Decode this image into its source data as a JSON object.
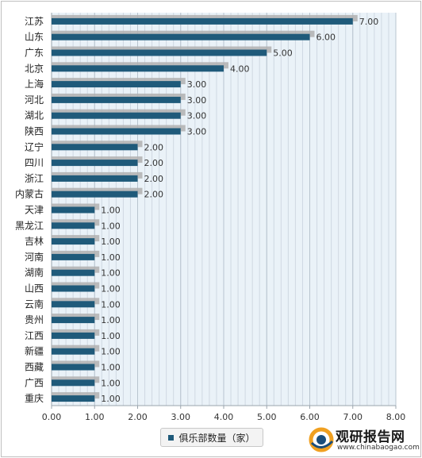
{
  "chart_data": {
    "type": "bar",
    "orientation": "horizontal",
    "categories": [
      "江苏",
      "山东",
      "广东",
      "北京",
      "上海",
      "河北",
      "湖北",
      "陕西",
      "辽宁",
      "四川",
      "浙江",
      "内蒙古",
      "天津",
      "黑龙江",
      "吉林",
      "河南",
      "湖南",
      "山西",
      "云南",
      "贵州",
      "江西",
      "新疆",
      "西藏",
      "广西",
      "重庆"
    ],
    "series": [
      {
        "name": "俱乐部数量（家）",
        "values": [
          7,
          6,
          5,
          4,
          3,
          3,
          3,
          3,
          2,
          2,
          2,
          2,
          1,
          1,
          1,
          1,
          1,
          1,
          1,
          1,
          1,
          1,
          1,
          1,
          1
        ],
        "labels": [
          "7.00",
          "6.00",
          "5.00",
          "4.00",
          "3.00",
          "3.00",
          "3.00",
          "3.00",
          "2.00",
          "2.00",
          "2.00",
          "2.00",
          "1.00",
          "1.00",
          "1.00",
          "1.00",
          "1.00",
          "1.00",
          "1.00",
          "1.00",
          "1.00",
          "1.00",
          "1.00",
          "1.00",
          "1.00"
        ]
      }
    ],
    "xlim": [
      0,
      8
    ],
    "x_ticks": [
      "0.00",
      "1.00",
      "2.00",
      "3.00",
      "4.00",
      "5.00",
      "6.00",
      "7.00",
      "8.00"
    ],
    "grid": true,
    "legend_position": "bottom",
    "colors": {
      "bar": "#1f5a7a",
      "bar_shadow": "#b0b0b0",
      "grid_line": "#cfd8e2",
      "plot_bg": "#eaf2f8",
      "axis": "#9aa4ad"
    }
  },
  "legend": {
    "label": "俱乐部数量（家）"
  },
  "watermark": {
    "name": "观研报告网",
    "url": "www.chinabaogao.com"
  }
}
